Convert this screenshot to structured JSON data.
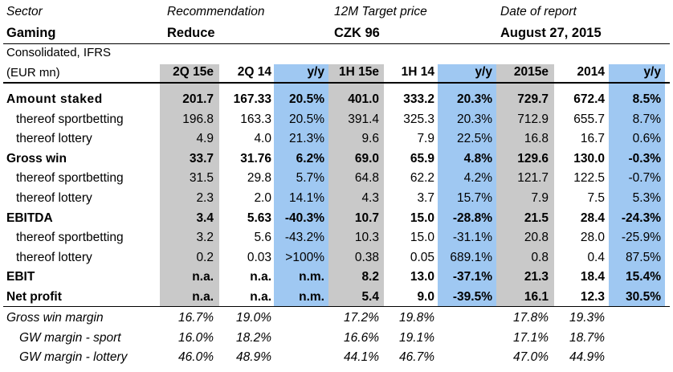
{
  "header": {
    "sector_label": "Sector",
    "sector_value": "Gaming",
    "recommendation_label": "Recommendation",
    "recommendation_value": "Reduce",
    "target_label": "12M Target price",
    "target_value": "CZK 96",
    "date_label": "Date of report",
    "date_value": "August 27, 2015",
    "basis_label": "Consolidated, IFRS",
    "unit_label": "(EUR mn)"
  },
  "columns": [
    "2Q 15e",
    "2Q 14",
    "y/y",
    "1H 15e",
    "1H 14",
    "y/y",
    "2015e",
    "2014",
    "y/y"
  ],
  "colors": {
    "grey_band": "#c9c9c9",
    "blue_band": "#9fc8f2"
  },
  "rows": [
    {
      "label": "Amount staked",
      "style": "bold",
      "values": [
        "201.7",
        "167.33",
        "20.5%",
        "401.0",
        "333.2",
        "20.3%",
        "729.7",
        "672.4",
        "8.5%"
      ]
    },
    {
      "label": "thereof sportbetting",
      "style": "sub",
      "values": [
        "196.8",
        "163.3",
        "20.5%",
        "391.4",
        "325.3",
        "20.3%",
        "712.9",
        "655.7",
        "8.7%"
      ]
    },
    {
      "label": "thereof lottery",
      "style": "sub",
      "values": [
        "4.9",
        "4.0",
        "21.3%",
        "9.6",
        "7.9",
        "22.5%",
        "16.8",
        "16.7",
        "0.6%"
      ]
    },
    {
      "label": "Gross win",
      "style": "bold",
      "values": [
        "33.7",
        "31.76",
        "6.2%",
        "69.0",
        "65.9",
        "4.8%",
        "129.6",
        "130.0",
        "-0.3%"
      ]
    },
    {
      "label": "thereof sportbetting",
      "style": "sub",
      "values": [
        "31.5",
        "29.8",
        "5.7%",
        "64.8",
        "62.2",
        "4.2%",
        "121.7",
        "122.5",
        "-0.7%"
      ]
    },
    {
      "label": "thereof lottery",
      "style": "sub",
      "values": [
        "2.3",
        "2.0",
        "14.1%",
        "4.3",
        "3.7",
        "15.7%",
        "7.9",
        "7.5",
        "5.3%"
      ]
    },
    {
      "label": "EBITDA",
      "style": "bold",
      "values": [
        "3.4",
        "5.63",
        "-40.3%",
        "10.7",
        "15.0",
        "-28.8%",
        "21.5",
        "28.4",
        "-24.3%"
      ]
    },
    {
      "label": "thereof sportbetting",
      "style": "sub",
      "values": [
        "3.2",
        "5.6",
        "-43.2%",
        "10.3",
        "15.0",
        "-31.1%",
        "20.8",
        "28.0",
        "-25.9%"
      ]
    },
    {
      "label": "thereof lottery",
      "style": "sub",
      "values": [
        "0.2",
        "0.03",
        ">100%",
        "0.38",
        "0.05",
        "689.1%",
        "0.8",
        "0.4",
        "87.5%"
      ]
    },
    {
      "label": "EBIT",
      "style": "bold",
      "values": [
        "n.a.",
        "n.a.",
        "n.m.",
        "8.2",
        "13.0",
        "-37.1%",
        "21.3",
        "18.4",
        "15.4%"
      ]
    },
    {
      "label": "Net profit",
      "style": "bold",
      "values": [
        "n.a.",
        "n.a.",
        "n.m.",
        "5.4",
        "9.0",
        "-39.5%",
        "16.1",
        "12.3",
        "30.5%"
      ]
    }
  ],
  "margins": [
    {
      "label": "Gross win margin",
      "values": [
        "16.7%",
        "19.0%",
        "",
        "17.2%",
        "19.8%",
        "",
        "17.8%",
        "19.3%",
        ""
      ]
    },
    {
      "label": "GW margin - sport",
      "values": [
        "16.0%",
        "18.2%",
        "",
        "16.6%",
        "19.1%",
        "",
        "17.1%",
        "18.7%",
        ""
      ]
    },
    {
      "label": "GW margin - lottery",
      "values": [
        "46.0%",
        "48.9%",
        "",
        "44.1%",
        "46.7%",
        "",
        "47.0%",
        "44.9%",
        ""
      ]
    }
  ]
}
